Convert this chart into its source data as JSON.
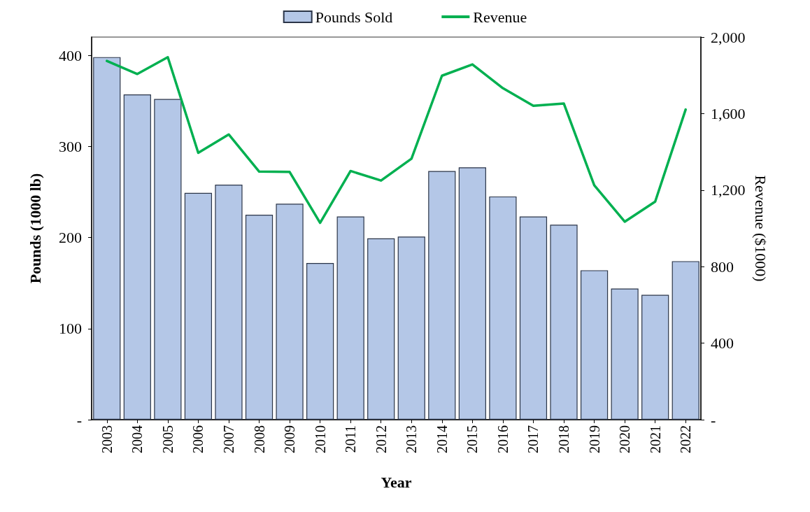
{
  "chart_data": {
    "type": "bar",
    "xlabel": "Year",
    "ylabel": "Pounds (1000 lb)",
    "y2label": "Revenue ($1000)",
    "categories": [
      "2003",
      "2004",
      "2005",
      "2006",
      "2007",
      "2008",
      "2009",
      "2010",
      "2011",
      "2012",
      "2013",
      "2014",
      "2015",
      "2016",
      "2017",
      "2018",
      "2019",
      "2020",
      "2021",
      "2022"
    ],
    "series": [
      {
        "name": "Pounds Sold",
        "color": "#b4c7e7",
        "values": [
          398,
          357,
          352,
          249,
          258,
          225,
          237,
          172,
          223,
          199,
          201,
          273,
          277,
          245,
          223,
          214,
          164,
          144,
          137,
          174
        ]
      },
      {
        "name": "Revenue",
        "type": "line",
        "axis": "y2",
        "color": "#00b050",
        "values": [
          1875,
          1807,
          1895,
          1395,
          1491,
          1297,
          1295,
          1029,
          1300,
          1250,
          1364,
          1798,
          1857,
          1733,
          1641,
          1653,
          1225,
          1035,
          1140,
          1621
        ]
      }
    ],
    "ylim": [
      0,
      420
    ],
    "yticks": [
      {
        "value": 0,
        "label": "-"
      },
      100,
      200,
      300,
      400
    ],
    "y2lim": [
      0,
      2000
    ],
    "y2ticks": [
      {
        "value": 0,
        "label": "-"
      },
      {
        "value": 400,
        "label": "400"
      },
      {
        "value": 800,
        "label": "800"
      },
      {
        "value": 1200,
        "label": "1,200"
      },
      {
        "value": 1600,
        "label": "1,600"
      },
      {
        "value": 2000,
        "label": "2,000"
      }
    ],
    "grid": false,
    "legend": "top",
    "marker": "none",
    "line_style": "solid"
  }
}
